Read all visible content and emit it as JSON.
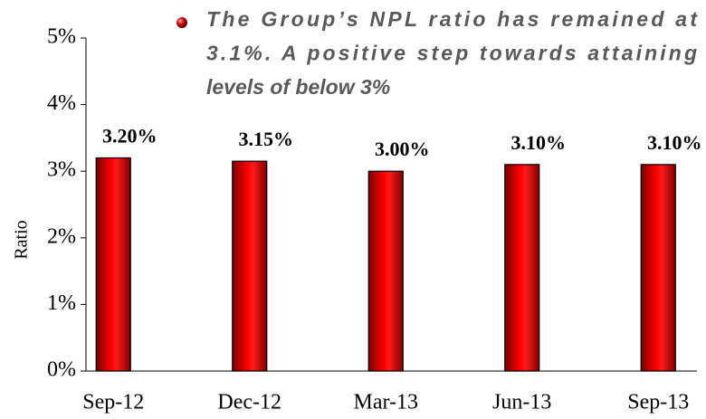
{
  "chart_data": {
    "type": "bar",
    "annotation": [
      "The Group’s NPL ratio has remained at",
      "3.1%. A positive step towards attaining",
      "levels of  below 3%"
    ],
    "y_label": "Ratio",
    "categories": [
      "Sep-12",
      "Dec-12",
      "Mar-13",
      "Jun-13",
      "Sep-13"
    ],
    "values": [
      3.2,
      3.15,
      3.0,
      3.1,
      3.1
    ],
    "value_labels": [
      "3.20%",
      "3.15%",
      "3.00%",
      "3.10%",
      "3.10%"
    ],
    "color": "#ff0000",
    "ylim": [
      0,
      5
    ],
    "yticks": [
      {
        "value": 0,
        "label": "0%"
      },
      {
        "value": 1,
        "label": "1%"
      },
      {
        "value": 2,
        "label": "2%"
      },
      {
        "value": 3,
        "label": "3%"
      },
      {
        "value": 4,
        "label": "4%"
      },
      {
        "value": 5,
        "label": "5%"
      }
    ],
    "grid": false
  }
}
